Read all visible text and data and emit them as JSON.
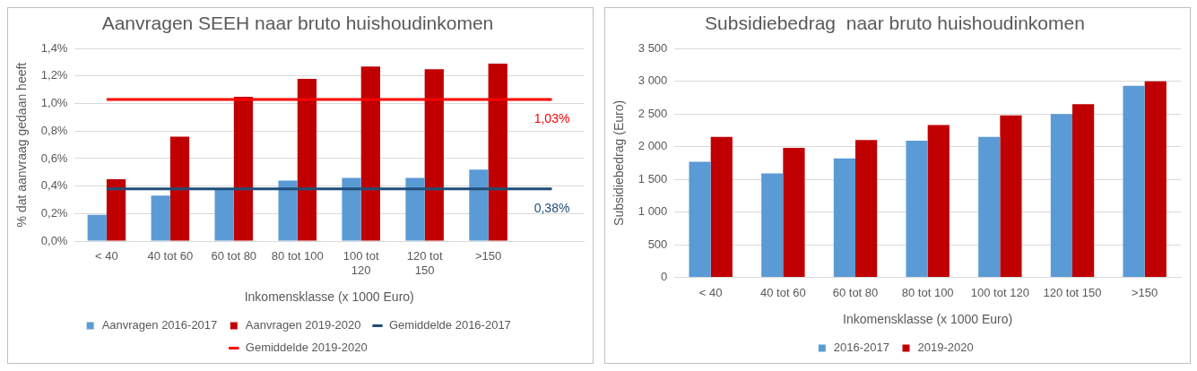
{
  "chart_data": [
    {
      "type": "bar",
      "title": "Aanvragen SEEH naar bruto huishoudinkomen",
      "xlabel": "Inkomensklasse (x 1000 Euro)",
      "ylabel": "% dat aanvraag gedaan heeft",
      "categories": [
        "< 40",
        "40 tot 60",
        "60 tot 80",
        "80 tot 100",
        "100 tot 120",
        "120 tot 150",
        ">150",
        null
      ],
      "series": [
        {
          "name": "Aanvragen 2016-2017",
          "color": "#5b9bd5",
          "values": [
            0.19,
            0.33,
            0.38,
            0.44,
            0.46,
            0.46,
            0.52,
            null
          ]
        },
        {
          "name": "Aanvragen 2019-2020",
          "color": "#c00000",
          "values": [
            0.45,
            0.76,
            1.05,
            1.18,
            1.27,
            1.25,
            1.29,
            null
          ]
        },
        {
          "name": "Gemiddelde 2016-2017",
          "type": "line",
          "color": "#1f4e79",
          "values": [
            0.38,
            0.38,
            0.38,
            0.38,
            0.38,
            0.38,
            0.38,
            0.38
          ],
          "value_labels": [
            null,
            null,
            null,
            null,
            null,
            null,
            null,
            "0,38%"
          ]
        },
        {
          "name": "Gemiddelde 2019-2020",
          "type": "line",
          "color": "#ff0000",
          "values": [
            1.03,
            1.03,
            1.03,
            1.03,
            1.03,
            1.03,
            1.03,
            1.03
          ],
          "value_labels": [
            null,
            null,
            null,
            null,
            null,
            null,
            null,
            "1,03%"
          ]
        }
      ],
      "ylim": [
        0,
        1.4
      ],
      "yticks": [
        {
          "value": 0,
          "label": "0,0%"
        },
        {
          "value": 0.2,
          "label": "0,2%"
        },
        {
          "value": 0.4,
          "label": "0,4%"
        },
        {
          "value": 0.6,
          "label": "0,6%"
        },
        {
          "value": 0.8,
          "label": "0,8%"
        },
        {
          "value": 1.0,
          "label": "1,0%"
        },
        {
          "value": 1.2,
          "label": "1,2%"
        },
        {
          "value": 1.4,
          "label": "1,4%"
        }
      ],
      "grid": "y",
      "legend": "bottom",
      "marker": "none"
    },
    {
      "type": "bar",
      "title": "Subsidiebedrag  naar bruto huishoudinkomen",
      "xlabel": "Inkomensklasse (x 1000 Euro)",
      "ylabel": "Subsidiebedrag (Euro)",
      "categories": [
        "< 40",
        "40 tot 60",
        "60 tot 80",
        "80 tot 100",
        "100 tot 120",
        "120 tot 150",
        ">150"
      ],
      "series": [
        {
          "name": "2016-2017",
          "color": "#5b9bd5",
          "values": [
            1770,
            1590,
            1820,
            2090,
            2150,
            2500,
            2930
          ]
        },
        {
          "name": "2019-2020",
          "color": "#c00000",
          "values": [
            2150,
            1980,
            2100,
            2330,
            2480,
            2650,
            3000
          ]
        }
      ],
      "ylim": [
        0,
        3500
      ],
      "yticks": [
        {
          "value": 0,
          "label": "0"
        },
        {
          "value": 500,
          "label": "500"
        },
        {
          "value": 1000,
          "label": "1 000"
        },
        {
          "value": 1500,
          "label": "1 500"
        },
        {
          "value": 2000,
          "label": "2 000"
        },
        {
          "value": 2500,
          "label": "2 500"
        },
        {
          "value": 3000,
          "label": "3 000"
        },
        {
          "value": 3500,
          "label": "3 500"
        }
      ],
      "grid": "y",
      "legend": "bottom"
    }
  ]
}
